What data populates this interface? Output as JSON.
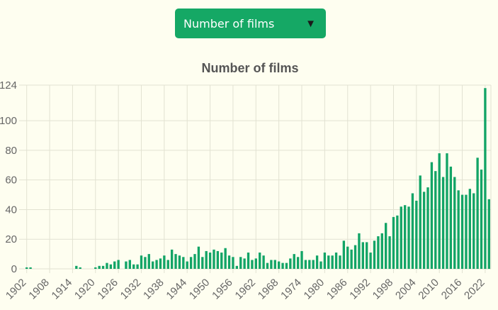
{
  "selector": {
    "selected": "Number of films",
    "arrow_icon": "triangle-down-icon"
  },
  "colors": {
    "bar": "#12a466",
    "grid": "#e2e2d2",
    "text": "#666666",
    "title": "#555555",
    "select_bg": "#15a865"
  },
  "chart_data": {
    "type": "bar",
    "title": "Number of films",
    "xlabel": "",
    "ylabel": "",
    "ylim": [
      0,
      124
    ],
    "yticks": [
      0,
      20,
      40,
      60,
      80,
      100,
      124
    ],
    "grid": true,
    "x_start": 1902,
    "x_end": 2023,
    "xtick_labels": [
      "1902",
      "1908",
      "1914",
      "1920",
      "1926",
      "1932",
      "1938",
      "1944",
      "1950",
      "1956",
      "1962",
      "1968",
      "1974",
      "1980",
      "1986",
      "1992",
      "1998",
      "2004",
      "2010",
      "2016",
      "2022"
    ],
    "categories": [
      1902,
      1903,
      1904,
      1905,
      1906,
      1907,
      1908,
      1909,
      1910,
      1911,
      1912,
      1913,
      1914,
      1915,
      1916,
      1917,
      1918,
      1919,
      1920,
      1921,
      1922,
      1923,
      1924,
      1925,
      1926,
      1927,
      1928,
      1929,
      1930,
      1931,
      1932,
      1933,
      1934,
      1935,
      1936,
      1937,
      1938,
      1939,
      1940,
      1941,
      1942,
      1943,
      1944,
      1945,
      1946,
      1947,
      1948,
      1949,
      1950,
      1951,
      1952,
      1953,
      1954,
      1955,
      1956,
      1957,
      1958,
      1959,
      1960,
      1961,
      1962,
      1963,
      1964,
      1965,
      1966,
      1967,
      1968,
      1969,
      1970,
      1971,
      1972,
      1973,
      1974,
      1975,
      1976,
      1977,
      1978,
      1979,
      1980,
      1981,
      1982,
      1983,
      1984,
      1985,
      1986,
      1987,
      1988,
      1989,
      1990,
      1991,
      1992,
      1993,
      1994,
      1995,
      1996,
      1997,
      1998,
      1999,
      2000,
      2001,
      2002,
      2003,
      2004,
      2005,
      2006,
      2007,
      2008,
      2009,
      2010,
      2011,
      2012,
      2013,
      2014,
      2015,
      2016,
      2017,
      2018,
      2019,
      2020,
      2021,
      2022,
      2023
    ],
    "values": [
      1,
      1,
      0,
      0,
      0,
      0,
      0,
      0,
      0,
      0,
      0,
      0,
      0,
      2,
      1,
      0,
      0,
      0,
      1,
      2,
      2,
      4,
      3,
      5,
      6,
      0,
      5,
      6,
      3,
      3,
      9,
      8,
      10,
      5,
      6,
      7,
      9,
      6,
      13,
      10,
      9,
      8,
      5,
      8,
      10,
      15,
      8,
      12,
      11,
      13,
      12,
      11,
      14,
      9,
      8,
      2,
      8,
      7,
      11,
      6,
      7,
      11,
      9,
      4,
      6,
      6,
      5,
      4,
      4,
      7,
      10,
      8,
      12,
      6,
      6,
      6,
      9,
      5,
      11,
      9,
      9,
      11,
      9,
      19,
      15,
      13,
      16,
      24,
      18,
      18,
      11,
      19,
      22,
      24,
      31,
      22,
      35,
      36,
      42,
      43,
      42,
      51,
      46,
      63,
      52,
      55,
      72,
      66,
      78,
      62,
      78,
      69,
      62,
      53,
      50,
      50,
      54,
      51,
      75,
      67,
      122,
      47
    ]
  }
}
